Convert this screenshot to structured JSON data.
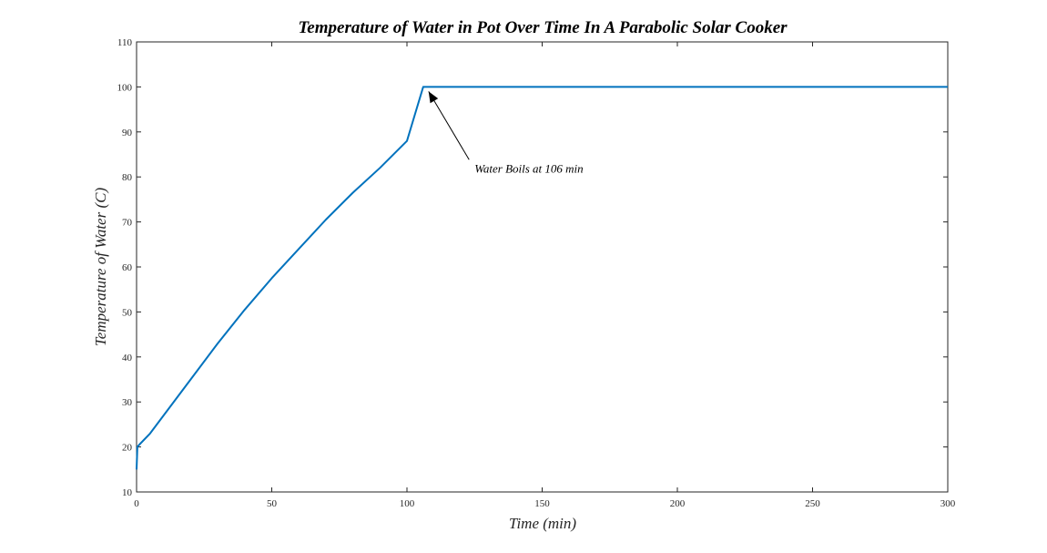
{
  "chart_data": {
    "type": "line",
    "title": "Temperature of Water in Pot Over Time In A Parabolic Solar Cooker",
    "xlabel": "Time (min)",
    "ylabel": "Temperature of Water (C)",
    "xlim": [
      0,
      300
    ],
    "ylim": [
      10,
      110
    ],
    "xticks": [
      0,
      50,
      100,
      150,
      200,
      250,
      300
    ],
    "yticks": [
      10,
      20,
      30,
      40,
      50,
      60,
      70,
      80,
      90,
      100,
      110
    ],
    "grid": false,
    "series": [
      {
        "color": "#0072BD",
        "x": [
          0,
          0.3,
          1,
          5,
          10,
          20,
          30,
          40,
          50,
          60,
          70,
          80,
          90,
          100,
          106,
          107,
          150,
          200,
          250,
          300
        ],
        "y": [
          15,
          20,
          20.5,
          23,
          27,
          35,
          43,
          50.5,
          57.5,
          64,
          70.5,
          76.5,
          82,
          88,
          100,
          100,
          100,
          100,
          100,
          100
        ]
      }
    ],
    "annotations": [
      {
        "text": "Water Boils at 106 min",
        "x": 125,
        "y": 81,
        "arrow_to": [
          108,
          99
        ]
      }
    ]
  }
}
